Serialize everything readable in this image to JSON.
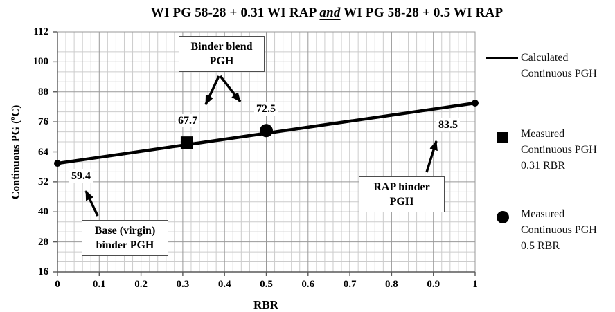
{
  "title": {
    "prefix": "WI PG 58-28 + 0.31 WI RAP ",
    "emphasized": "and",
    "suffix": " WI PG 58-28 + 0.5 WI RAP"
  },
  "y_axis_label": {
    "prefix": "Continuous PG (",
    "sup": "o",
    "suffix": "C)"
  },
  "chart_data": {
    "type": "line",
    "title": "WI PG 58-28 + 0.31 WI RAP and WI PG 58-28 + 0.5 WI RAP",
    "xlabel": "RBR",
    "ylabel": "Continuous PG (°C)",
    "xlim": [
      0,
      1
    ],
    "ylim": [
      16,
      112
    ],
    "x_major_step": 0.1,
    "x_minor_step": 0.02,
    "y_major_step": 12,
    "y_minor_step": 4,
    "x_tick_labels": [
      "0",
      "0.1",
      "0.2",
      "0.3",
      "0.4",
      "0.5",
      "0.6",
      "0.7",
      "0.8",
      "0.9",
      "1"
    ],
    "y_tick_labels": [
      "16",
      "28",
      "40",
      "52",
      "64",
      "76",
      "88",
      "100",
      "112"
    ],
    "grid": true,
    "legend_position": "right",
    "series": [
      {
        "name": "Calculated Continuous PGH",
        "type": "line",
        "points": [
          [
            0,
            59.4
          ],
          [
            1,
            83.5
          ]
        ]
      },
      {
        "name": "Measured Continuous PGH 0.31 RBR",
        "type": "scatter",
        "marker": "square",
        "points": [
          [
            0.31,
            67.7
          ]
        ]
      },
      {
        "name": "Measured Continuous PGH 0.5 RBR",
        "type": "scatter",
        "marker": "circle",
        "points": [
          [
            0.5,
            72.5
          ]
        ]
      }
    ],
    "point_labels": [
      {
        "text": "59.4",
        "x": 0,
        "y": 59.4
      },
      {
        "text": "67.7",
        "x": 0.31,
        "y": 67.7
      },
      {
        "text": "72.5",
        "x": 0.5,
        "y": 72.5
      },
      {
        "text": "83.5",
        "x": 1,
        "y": 83.5
      }
    ]
  },
  "legend": {
    "items": [
      {
        "marker": "line",
        "lines": [
          "Calculated",
          "Continuous PGH"
        ]
      },
      {
        "marker": "square",
        "lines": [
          "Measured",
          "Continuous PGH",
          "0.31 RBR"
        ]
      },
      {
        "marker": "circle",
        "lines": [
          "Measured",
          "Continuous PGH",
          "0.5 RBR"
        ]
      }
    ]
  },
  "annotations": [
    {
      "id": "binder-blend",
      "lines": [
        "Binder blend",
        "PGH"
      ]
    },
    {
      "id": "rap-binder",
      "lines": [
        "RAP binder",
        "PGH"
      ]
    },
    {
      "id": "base-virgin",
      "lines": [
        "Base (virgin)",
        "binder PGH"
      ]
    }
  ],
  "colors": {
    "line": "#000000",
    "grid_minor": "#cccccc",
    "grid_major": "#999999",
    "axis": "#595959",
    "text": "#000000",
    "background": "#ffffff"
  }
}
